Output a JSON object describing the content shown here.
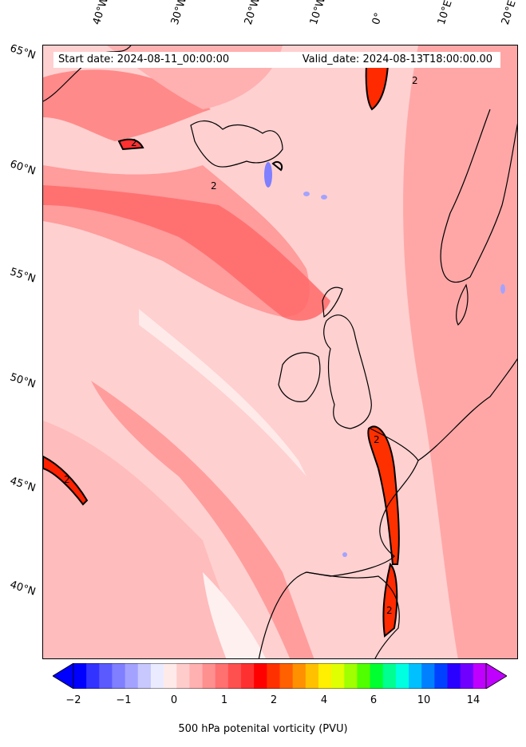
{
  "map": {
    "start_date": "Start date: 2024-08-11_00:00:00",
    "valid_date": "Valid_date: 2024-08-13T18:00:00.00",
    "lon_labels": [
      "40°W",
      "30°W",
      "20°W",
      "10°W",
      "0°",
      "10°E",
      "20°E"
    ],
    "lat_labels": [
      "65°N",
      "60°N",
      "55°N",
      "50°N",
      "45°N",
      "40°N"
    ],
    "contour_level": "2",
    "contour_labels": [
      "2",
      "2",
      "2",
      "2",
      "2",
      "2"
    ]
  },
  "colorbar": {
    "title": "500 hPa potenital vorticity (PVU)",
    "tick_labels": [
      "−2",
      "−1",
      "0",
      "1",
      "2",
      "4",
      "6",
      "10",
      "14"
    ],
    "colors": [
      "#0000ff",
      "#3333ff",
      "#5a5aff",
      "#7f7fff",
      "#a3a3ff",
      "#c8c8ff",
      "#ebebff",
      "#ffeaea",
      "#ffcccc",
      "#ffb0b0",
      "#ff9090",
      "#ff7070",
      "#ff5050",
      "#ff3030",
      "#ff0000",
      "#ff3000",
      "#ff6000",
      "#ff9000",
      "#ffc000",
      "#ffef00",
      "#e0ff00",
      "#a0ff00",
      "#50ff00",
      "#00ff30",
      "#00ff90",
      "#00ffe0",
      "#00c0ff",
      "#0080ff",
      "#0040ff",
      "#2a00ff",
      "#7000ff",
      "#c000ff"
    ],
    "under_color": "#0000ff",
    "over_color": "#c000ff"
  }
}
